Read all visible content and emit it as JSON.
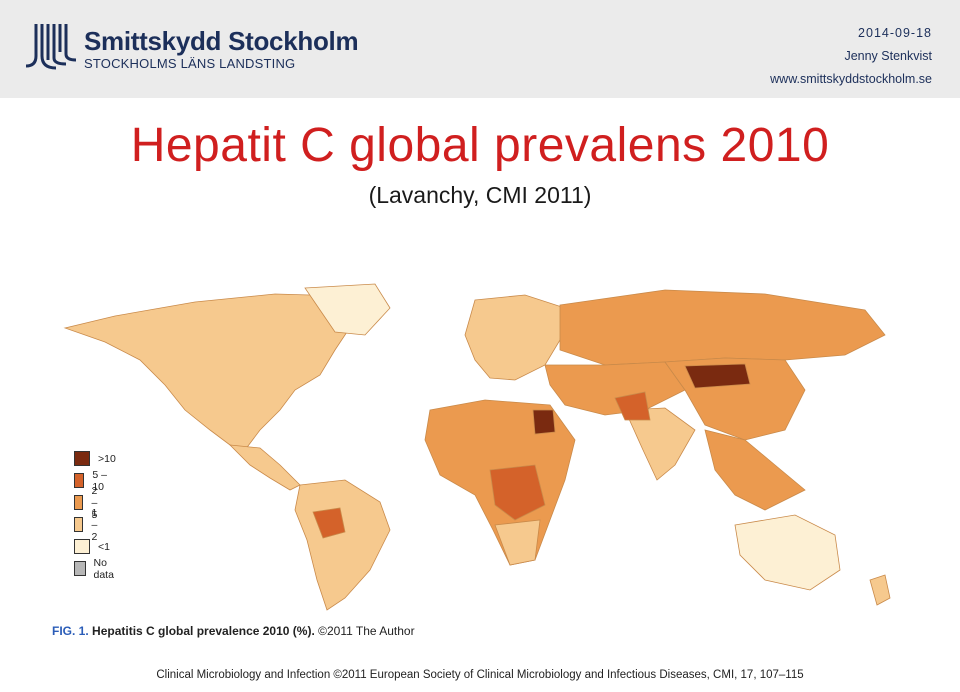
{
  "header": {
    "org_name": "Smittskydd Stockholm",
    "org_sub": "STOCKHOLMS LÄNS LANDSTING",
    "date": "2014-09-18",
    "author": "Jenny Stenkvist",
    "website": "www.smittskyddstockholm.se"
  },
  "slide": {
    "title": "Hepatit C global prevalens 2010",
    "subtitle": "(Lavanchy, CMI 2011)"
  },
  "legend": {
    "items": [
      {
        "label": ">10",
        "color": "#7a2a10"
      },
      {
        "label": "5 – 10",
        "color": "#d4622a"
      },
      {
        "label": "2 – 5",
        "color": "#eb9a4f"
      },
      {
        "label": "1 – 2",
        "color": "#f6c98e"
      },
      {
        "label": "<1",
        "color": "#fdf0d4"
      },
      {
        "label": "No data",
        "color": "#b7b7b7"
      }
    ]
  },
  "figure": {
    "fig_num": "FIG. 1.",
    "caption": "Hepatitis C global prevalence 2010 (%).",
    "copyright": "©2011 The Author"
  },
  "footer": {
    "citation": "Clinical Microbiology and Infection ©2011 European Society of Clinical Microbiology and Infectious Diseases, CMI, 17, 107–115"
  }
}
